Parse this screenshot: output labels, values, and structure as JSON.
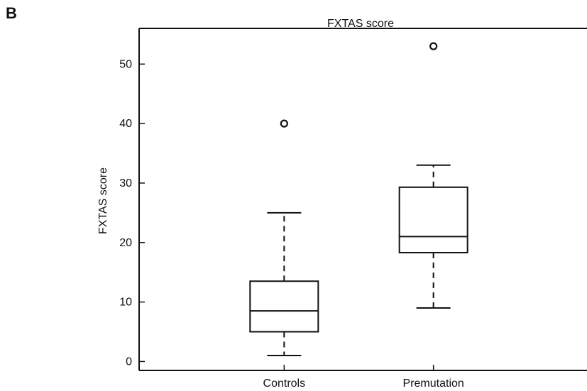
{
  "panel_label": "B",
  "chart_data": {
    "type": "box",
    "title": "FXTAS score",
    "xlabel": "",
    "ylabel": "FXTAS score",
    "ylim": [
      -1.5,
      56
    ],
    "yticks": [
      0,
      10,
      20,
      30,
      40,
      50
    ],
    "categories": [
      "Controls",
      "Premutation"
    ],
    "boxes": [
      {
        "category": "Controls",
        "whisker_low": 1,
        "q1": 5,
        "median": 8.5,
        "q3": 13.5,
        "whisker_high": 25,
        "outliers": [
          40
        ]
      },
      {
        "category": "Premutation",
        "whisker_low": 9,
        "q1": 18.3,
        "median": 21,
        "q3": 29.3,
        "whisker_high": 33,
        "outliers": [
          53
        ]
      }
    ],
    "grid": false,
    "legend": "none"
  }
}
